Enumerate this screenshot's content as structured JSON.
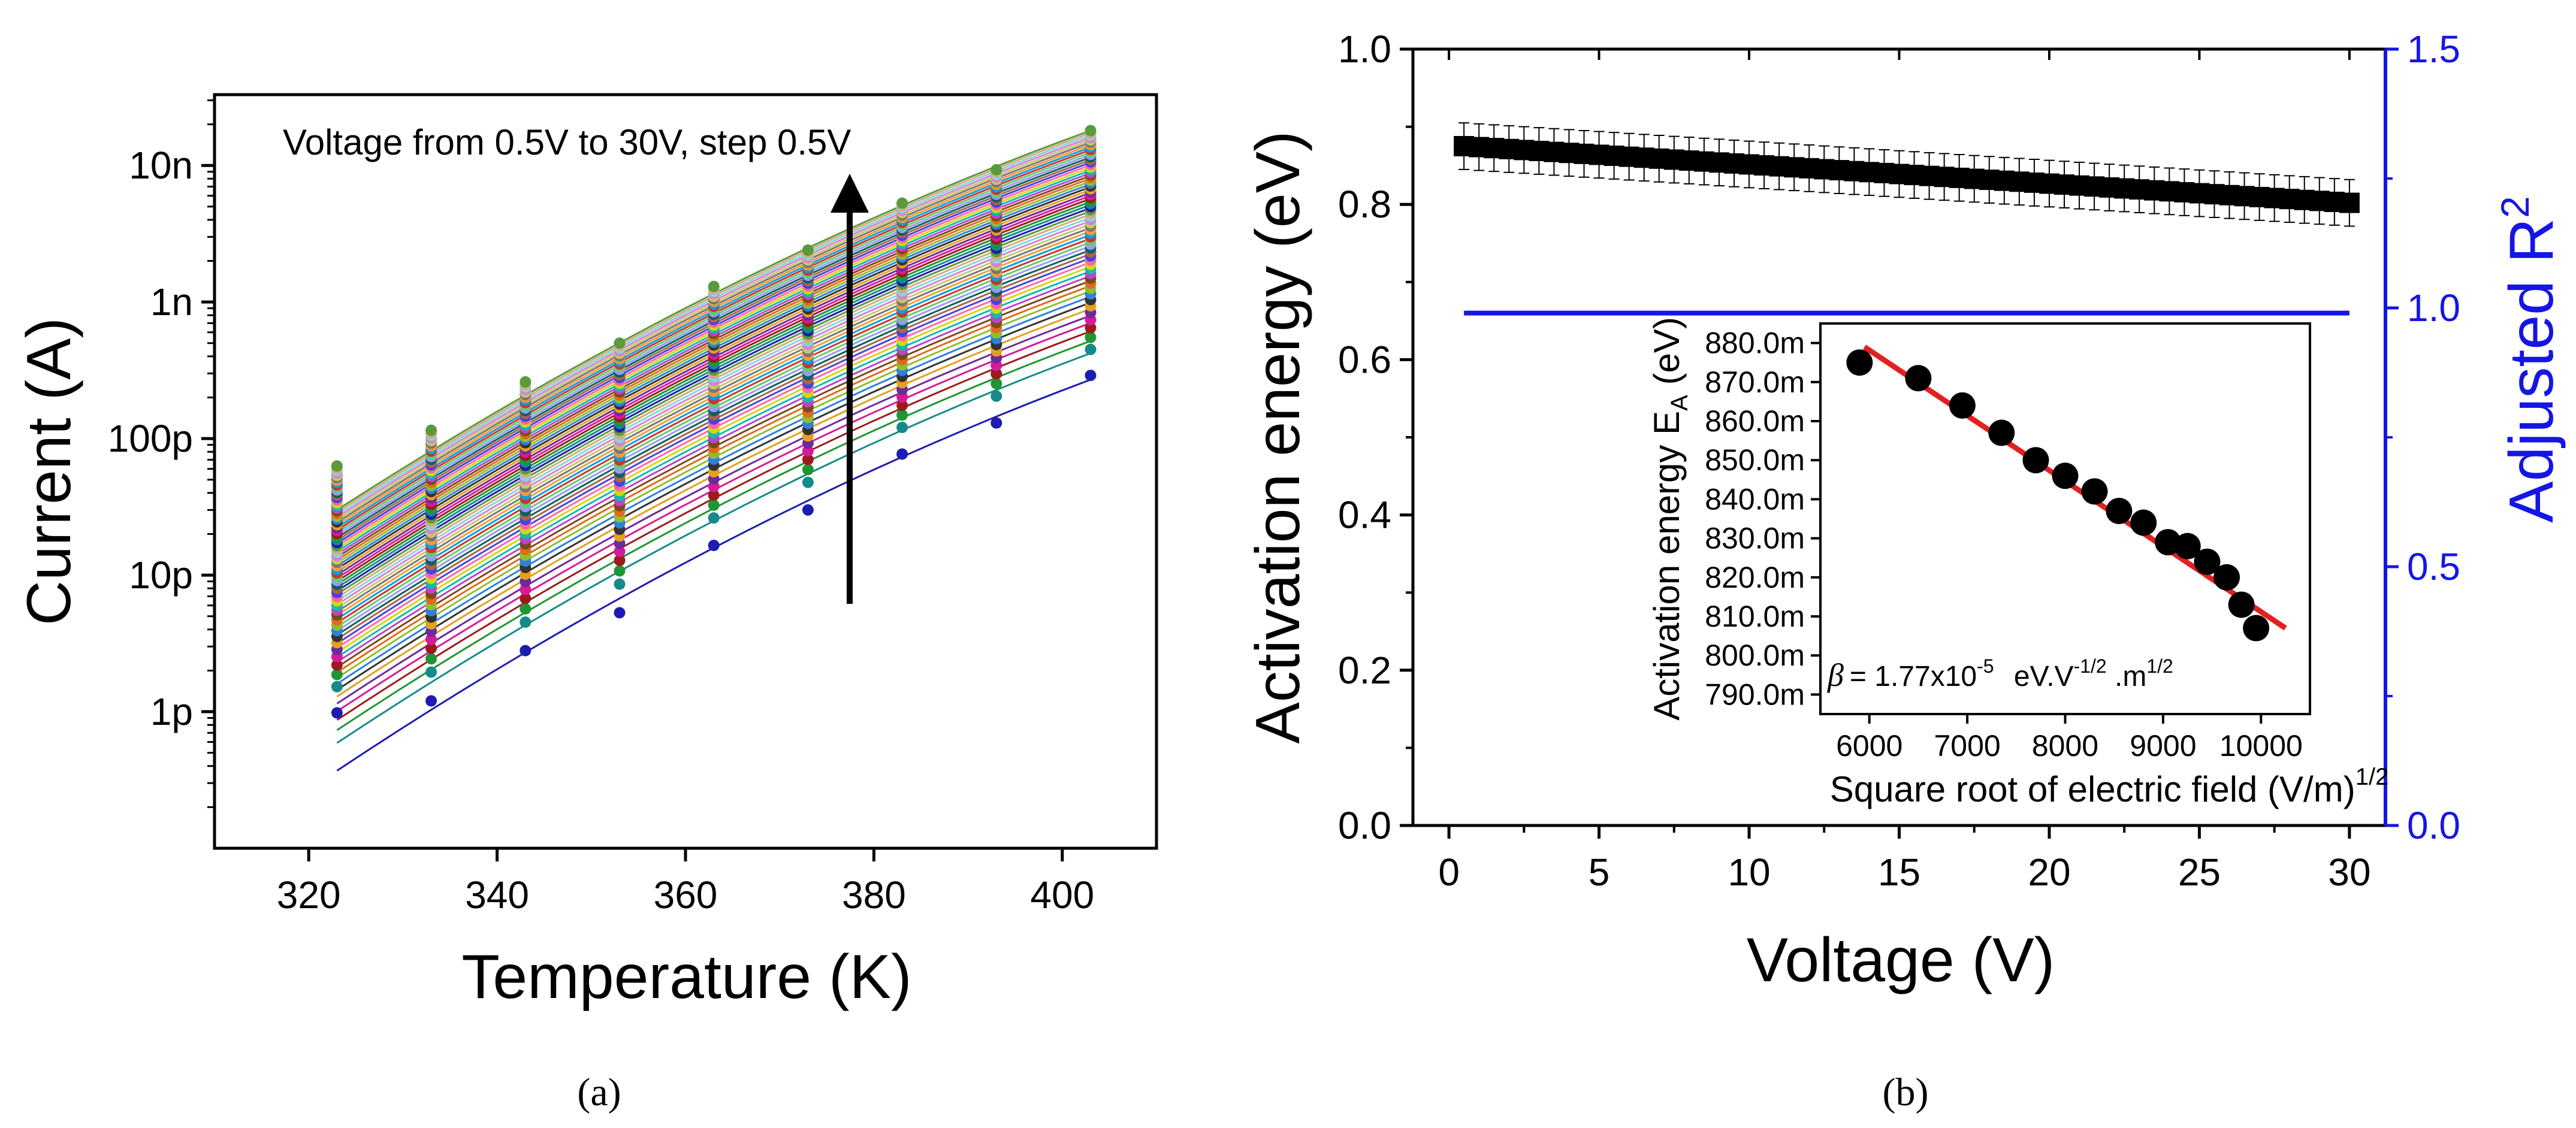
{
  "colors": {
    "axis": "#000000",
    "right_axis": "#1515e6",
    "fit_line": "#e32020",
    "palette": [
      "#1c1cb0",
      "#158a8a",
      "#1e9632",
      "#9b1b1b",
      "#d61a9a",
      "#6b2b9a",
      "#e3a11c",
      "#333333",
      "#2d7fe0",
      "#8fbf2c",
      "#e06a1c",
      "#7a4a1a",
      "#bb44cc",
      "#11bbaa",
      "#d6d60f",
      "#ff66aa",
      "#4444dd",
      "#aa6644",
      "#0e5f5f",
      "#9999ff",
      "#66cc66",
      "#cc3333",
      "#00a0e0",
      "#ff9933",
      "#777777",
      "#c8c864",
      "#d87fd8",
      "#7fd8d8",
      "#d8a87f",
      "#5a9a3a"
    ]
  },
  "panel_a": {
    "label": "(a)",
    "annotation": "Voltage from 0.5V to 30V, step 0.5V"
  },
  "panel_b": {
    "label": "(b)"
  },
  "chart_data": [
    {
      "type": "scatter",
      "name": "Current vs temperature at bias voltages 0.5 V to 30 V",
      "title": "",
      "xlabel": "Temperature (K)",
      "ylabel": "Current (A)",
      "xlim": [
        310,
        410
      ],
      "ylim": [
        1e-13,
        3.3e-08
      ],
      "yscale": "log",
      "x_ticks": [
        320,
        340,
        360,
        380,
        400
      ],
      "x_tick_labels": [
        "320",
        "340",
        "360",
        "380",
        "400"
      ],
      "y_ticks": [
        1e-12,
        1e-11,
        1e-10,
        1e-09,
        1e-08
      ],
      "y_tick_labels": [
        "1p",
        "10p",
        "100p",
        "1n",
        "10n"
      ],
      "x": [
        323,
        333,
        343,
        353,
        363,
        373,
        383,
        393,
        403
      ],
      "series_count": 60,
      "voltage_start_V": 0.5,
      "voltage_step_V": 0.5,
      "lowest_series_current_A": [
        9.8e-13,
        1.2e-12,
        2.8e-12,
        5.3e-12,
        1.65e-11,
        3e-11,
        7.7e-11,
        1.3e-10,
        2.9e-10
      ],
      "highest_series_current_A": [
        6.3e-11,
        1.15e-10,
        2.6e-10,
        5e-10,
        1.3e-09,
        2.4e-09,
        5.3e-09,
        9.3e-09,
        1.8e-08
      ],
      "fit_lowest_endpoints_A": [
        3.7e-13,
        2.7e-10
      ],
      "fit_highest_endpoints_A": [
        3e-11,
        1.8e-08
      ]
    },
    {
      "type": "scatter",
      "name": "Activation energy and adjusted R2 vs voltage",
      "xlabel": "Voltage (V)",
      "ylabel": "Activation energy (eV)",
      "ylabel_right": "Adjusted R",
      "ylabel_right_superscript": "2",
      "xlim": [
        -1.2,
        31.2
      ],
      "ylim": [
        0,
        1.0
      ],
      "ylim_right": [
        0,
        1.5
      ],
      "x_ticks": [
        0,
        5,
        10,
        15,
        20,
        25,
        30
      ],
      "y_ticks": [
        0.0,
        0.2,
        0.4,
        0.6,
        0.8,
        1.0
      ],
      "y_tick_labels": [
        "0.0",
        "0.2",
        "0.4",
        "0.6",
        "0.8",
        "1.0"
      ],
      "y_ticks_right": [
        0.0,
        0.5,
        1.0,
        1.5
      ],
      "y_tick_labels_right": [
        "0.0",
        "0.5",
        "1.0",
        "1.5"
      ],
      "x_start": 0.5,
      "x_step": 0.5,
      "x_end": 30,
      "activation_energy_start_eV": 0.875,
      "activation_energy_end_eV": 0.802,
      "error_bar_eV": 0.03,
      "adjusted_r2": 0.99
    },
    {
      "type": "scatter",
      "name": "Inset: activation energy vs square root of electric field",
      "xlabel": "Square root of electric field (V/m)",
      "xlabel_superscript": "1/2",
      "ylabel": "Activation energy E",
      "ylabel_subscript": "A",
      "ylabel_unit": " (eV)",
      "xlim": [
        5500,
        10500
      ],
      "ylim": [
        0.785,
        0.885
      ],
      "x_ticks": [
        6000,
        7000,
        8000,
        9000,
        10000
      ],
      "y_ticks": [
        0.79,
        0.8,
        0.81,
        0.82,
        0.83,
        0.84,
        0.85,
        0.86,
        0.87,
        0.88
      ],
      "y_tick_labels": [
        "790.0m",
        "800.0m",
        "810.0m",
        "820.0m",
        "830.0m",
        "840.0m",
        "850.0m",
        "860.0m",
        "870.0m",
        "880.0m"
      ],
      "x": [
        5900,
        6500,
        6950,
        7350,
        7700,
        8000,
        8300,
        8550,
        8800,
        9050,
        9250,
        9450,
        9650,
        9800,
        9950
      ],
      "y": [
        0.875,
        0.871,
        0.864,
        0.857,
        0.85,
        0.846,
        0.842,
        0.837,
        0.834,
        0.829,
        0.828,
        0.824,
        0.82,
        0.813,
        0.807
      ],
      "fit_line": {
        "x": [
          5950,
          10250
        ],
        "y": [
          0.879,
          0.807
        ]
      },
      "annotation_prefix": "= 1.77x10",
      "annotation_exp1": "-5",
      "annotation_mid": " eV.V",
      "annotation_exp2": "-1/2",
      "annotation_mid2": " .m",
      "annotation_exp3": "1/2"
    }
  ]
}
